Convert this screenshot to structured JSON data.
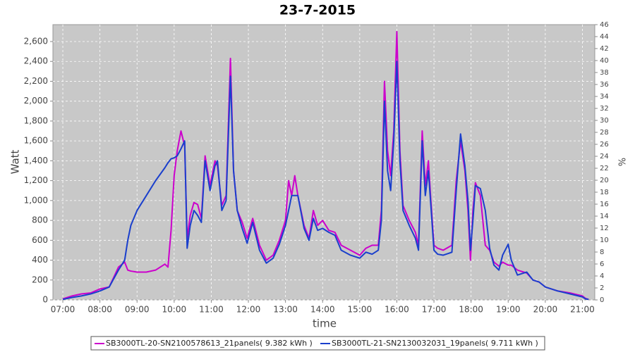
{
  "chart_data": {
    "type": "line",
    "title": "23-7-2015",
    "xlabel": "time",
    "ylabel": "Watt",
    "y2label": "%",
    "x": [
      "07:00",
      "07:15",
      "07:30",
      "07:45",
      "08:00",
      "08:15",
      "08:30",
      "08:40",
      "08:45",
      "08:50",
      "09:00",
      "09:15",
      "09:30",
      "09:45",
      "09:50",
      "09:55",
      "10:00",
      "10:05",
      "10:11",
      "10:17",
      "10:21",
      "10:26",
      "10:32",
      "10:38",
      "10:44",
      "10:50",
      "10:58",
      "11:06",
      "11:10",
      "11:17",
      "11:24",
      "11:31",
      "11:36",
      "11:42",
      "11:50",
      "11:58",
      "12:07",
      "12:18",
      "12:29",
      "12:40",
      "12:50",
      "13:00",
      "13:05",
      "13:10",
      "13:15",
      "13:20",
      "13:30",
      "13:38",
      "13:45",
      "13:52",
      "14:00",
      "14:10",
      "14:20",
      "14:30",
      "14:45",
      "15:00",
      "15:10",
      "15:20",
      "15:30",
      "15:35",
      "15:40",
      "15:45",
      "15:50",
      "15:55",
      "16:00",
      "16:05",
      "16:10",
      "16:20",
      "16:30",
      "16:35",
      "16:41",
      "16:46",
      "16:51",
      "16:55",
      "17:00",
      "17:06",
      "17:15",
      "17:29",
      "17:36",
      "17:43",
      "17:50",
      "17:55",
      "17:59",
      "18:03",
      "18:07",
      "18:15",
      "18:23",
      "18:30",
      "18:37",
      "18:45",
      "18:51",
      "19:00",
      "19:05",
      "19:15",
      "19:30",
      "19:40",
      "19:50",
      "20:00",
      "20:20",
      "20:40",
      "21:00",
      "21:05",
      "21:10"
    ],
    "series": [
      {
        "name": "SB3000TL-20-SN2100578613_21panels( 9.382 kWh )",
        "color": "#cc00cc",
        "values": [
          10,
          40,
          60,
          70,
          110,
          130,
          330,
          380,
          300,
          290,
          280,
          280,
          300,
          360,
          330,
          700,
          1250,
          1500,
          1700,
          1550,
          620,
          850,
          980,
          960,
          820,
          1450,
          1150,
          1400,
          1350,
          950,
          1050,
          2430,
          1300,
          900,
          780,
          620,
          820,
          550,
          400,
          450,
          600,
          800,
          1200,
          1050,
          1250,
          1050,
          750,
          620,
          900,
          750,
          800,
          700,
          680,
          550,
          500,
          450,
          520,
          550,
          550,
          900,
          2200,
          1500,
          1250,
          1700,
          2700,
          1500,
          950,
          800,
          680,
          550,
          1700,
          1150,
          1400,
          1000,
          550,
          520,
          500,
          550,
          1200,
          1600,
          1300,
          900,
          400,
          900,
          1180,
          1050,
          550,
          500,
          380,
          340,
          380,
          350,
          350,
          300,
          270,
          200,
          180,
          130,
          90,
          70,
          40,
          15,
          5
        ]
      },
      {
        "name": "SB3000TL-21-SN2130032031_19panels( 9.711 kWh )",
        "color": "#1a3fcc",
        "values": [
          5,
          25,
          40,
          60,
          90,
          130,
          300,
          400,
          600,
          750,
          900,
          1050,
          1200,
          1330,
          1380,
          1420,
          1430,
          1450,
          1520,
          1600,
          520,
          750,
          900,
          850,
          780,
          1400,
          1100,
          1350,
          1400,
          900,
          1000,
          2250,
          1300,
          900,
          720,
          570,
          780,
          500,
          370,
          420,
          560,
          750,
          900,
          1050,
          1050,
          1050,
          720,
          600,
          820,
          700,
          720,
          680,
          650,
          500,
          450,
          420,
          480,
          460,
          500,
          800,
          2000,
          1300,
          1100,
          1600,
          2400,
          1400,
          900,
          750,
          620,
          500,
          1600,
          1050,
          1300,
          950,
          500,
          460,
          450,
          480,
          1100,
          1670,
          1350,
          1000,
          500,
          800,
          1150,
          1120,
          900,
          520,
          350,
          300,
          450,
          560,
          400,
          250,
          280,
          200,
          180,
          130,
          90,
          60,
          30,
          10,
          5
        ]
      }
    ],
    "xlim": [
      "06:44",
      "21:20"
    ],
    "xticks": [
      "07:00",
      "08:00",
      "09:00",
      "10:00",
      "11:00",
      "12:00",
      "13:00",
      "14:00",
      "15:00",
      "16:00",
      "17:00",
      "18:00",
      "19:00",
      "20:00",
      "21:00"
    ],
    "ylim": [
      0,
      2770
    ],
    "yticks": [
      0,
      200,
      400,
      600,
      800,
      {
        "value": 1000,
        "label": "1,000"
      },
      {
        "value": 1200,
        "label": "1,200"
      },
      {
        "value": 1400,
        "label": "1,400"
      },
      {
        "value": 1600,
        "label": "1,600"
      },
      {
        "value": 1800,
        "label": "1,800"
      },
      {
        "value": 2000,
        "label": "2,000"
      },
      {
        "value": 2200,
        "label": "2,200"
      },
      {
        "value": 2400,
        "label": "2,400"
      },
      {
        "value": 2600,
        "label": "2,600"
      }
    ],
    "y2lim": [
      0,
      46
    ],
    "y2ticks": [
      0,
      2,
      4,
      6,
      8,
      10,
      12,
      14,
      16,
      18,
      20,
      22,
      24,
      26,
      28,
      30,
      32,
      34,
      36,
      38,
      40,
      42,
      44,
      46
    ],
    "grid": true,
    "legend": "bottom"
  }
}
